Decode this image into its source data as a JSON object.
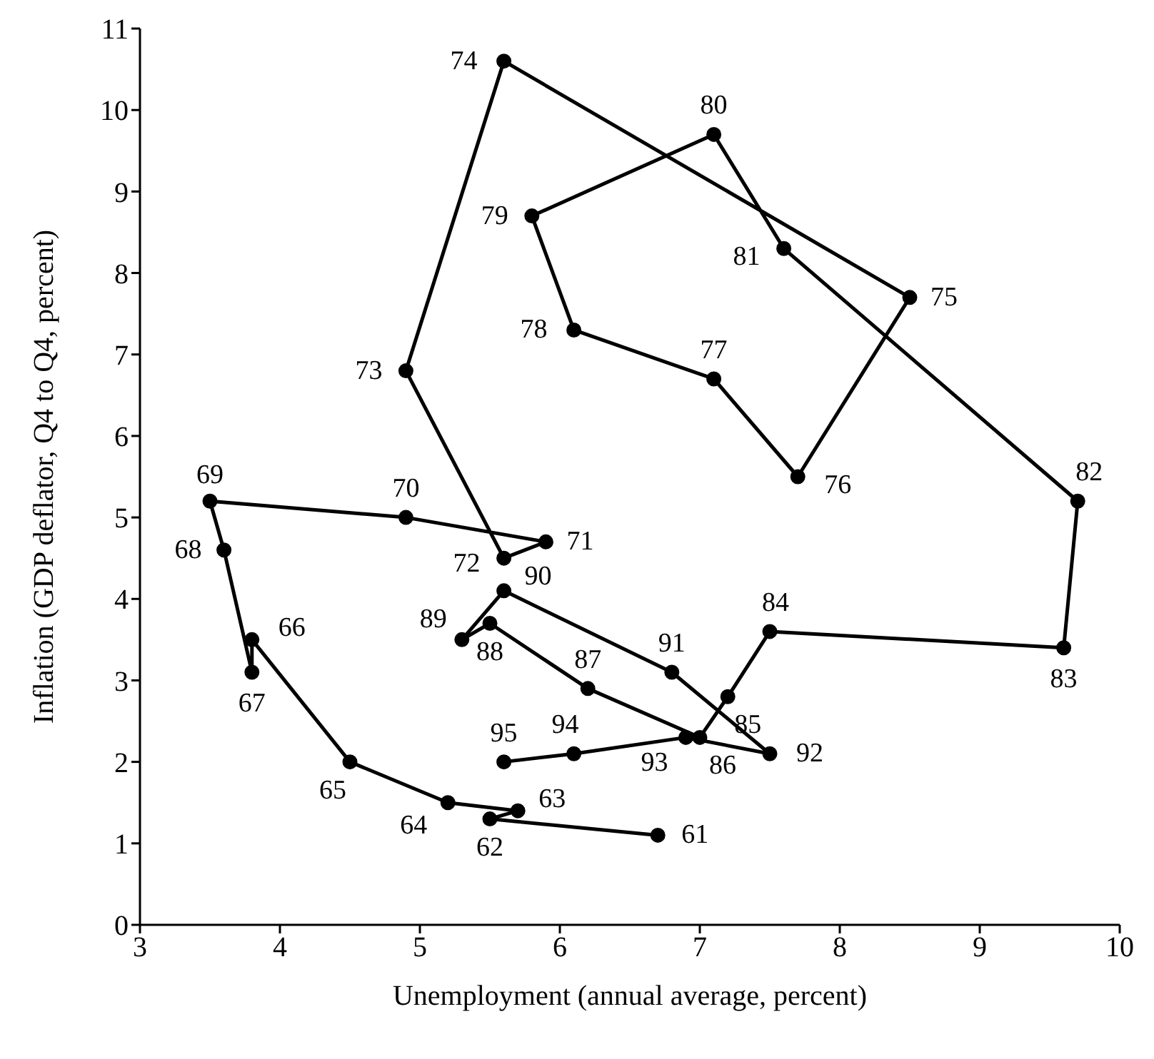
{
  "chart_data": {
    "type": "line",
    "xlabel": "Unemployment (annual average, percent)",
    "ylabel": "Inflation (GDP deflator, Q4 to Q4, percent)",
    "xlim": [
      3,
      10
    ],
    "xticks": [
      3,
      4,
      5,
      6,
      7,
      8,
      9,
      10
    ],
    "ylim": [
      0,
      11
    ],
    "yticks": [
      0,
      1,
      2,
      3,
      4,
      5,
      6,
      7,
      8,
      9,
      10,
      11
    ],
    "marker": "circle",
    "line_style": "solid",
    "series": [
      {
        "color": "#000000",
        "x": [
          6.7,
          5.5,
          5.7,
          5.2,
          4.5,
          3.8,
          3.8,
          3.6,
          3.5,
          4.9,
          5.9,
          5.6,
          4.9,
          5.6,
          8.5,
          7.7,
          7.1,
          6.1,
          5.8,
          7.1,
          7.6,
          9.7,
          9.6,
          7.5,
          7.2,
          7.0,
          6.2,
          5.5,
          5.3,
          5.6,
          6.8,
          7.5,
          6.9,
          6.1,
          5.6
        ],
        "values": [
          1.1,
          1.3,
          1.4,
          1.5,
          2.0,
          3.5,
          3.1,
          4.6,
          5.2,
          5.0,
          4.7,
          4.5,
          6.8,
          10.6,
          7.7,
          5.5,
          6.7,
          7.3,
          8.7,
          9.7,
          8.3,
          5.2,
          3.4,
          3.6,
          2.8,
          2.3,
          2.9,
          3.7,
          3.5,
          4.1,
          3.1,
          2.1,
          2.3,
          2.1,
          2.0
        ]
      }
    ],
    "annotations": [
      {
        "text": "61",
        "x": 6.7,
        "y": 1.1
      },
      {
        "text": "62",
        "x": 5.5,
        "y": 1.3
      },
      {
        "text": "63",
        "x": 5.7,
        "y": 1.4
      },
      {
        "text": "64",
        "x": 5.2,
        "y": 1.5
      },
      {
        "text": "65",
        "x": 4.5,
        "y": 2.0
      },
      {
        "text": "66",
        "x": 3.8,
        "y": 3.5
      },
      {
        "text": "67",
        "x": 3.8,
        "y": 3.1
      },
      {
        "text": "68",
        "x": 3.6,
        "y": 4.6
      },
      {
        "text": "69",
        "x": 3.5,
        "y": 5.2
      },
      {
        "text": "70",
        "x": 4.9,
        "y": 5.0
      },
      {
        "text": "71",
        "x": 5.9,
        "y": 4.7
      },
      {
        "text": "72",
        "x": 5.6,
        "y": 4.5
      },
      {
        "text": "73",
        "x": 4.9,
        "y": 6.8
      },
      {
        "text": "74",
        "x": 5.6,
        "y": 10.6
      },
      {
        "text": "75",
        "x": 8.5,
        "y": 7.7
      },
      {
        "text": "76",
        "x": 7.7,
        "y": 5.5
      },
      {
        "text": "77",
        "x": 7.1,
        "y": 6.7
      },
      {
        "text": "78",
        "x": 6.1,
        "y": 7.3
      },
      {
        "text": "79",
        "x": 5.8,
        "y": 8.7
      },
      {
        "text": "80",
        "x": 7.1,
        "y": 9.7
      },
      {
        "text": "81",
        "x": 7.6,
        "y": 8.3
      },
      {
        "text": "82",
        "x": 9.7,
        "y": 5.2
      },
      {
        "text": "83",
        "x": 9.6,
        "y": 3.4
      },
      {
        "text": "84",
        "x": 7.5,
        "y": 3.6
      },
      {
        "text": "85",
        "x": 7.2,
        "y": 2.8
      },
      {
        "text": "86",
        "x": 7.0,
        "y": 2.3
      },
      {
        "text": "87",
        "x": 6.2,
        "y": 2.9
      },
      {
        "text": "88",
        "x": 5.5,
        "y": 3.7
      },
      {
        "text": "89",
        "x": 5.3,
        "y": 3.5
      },
      {
        "text": "90",
        "x": 5.6,
        "y": 4.1
      },
      {
        "text": "91",
        "x": 6.8,
        "y": 3.1
      },
      {
        "text": "92",
        "x": 7.5,
        "y": 2.1
      },
      {
        "text": "93",
        "x": 6.9,
        "y": 2.3
      },
      {
        "text": "94",
        "x": 6.1,
        "y": 2.1
      },
      {
        "text": "95",
        "x": 5.6,
        "y": 2.0
      }
    ]
  }
}
